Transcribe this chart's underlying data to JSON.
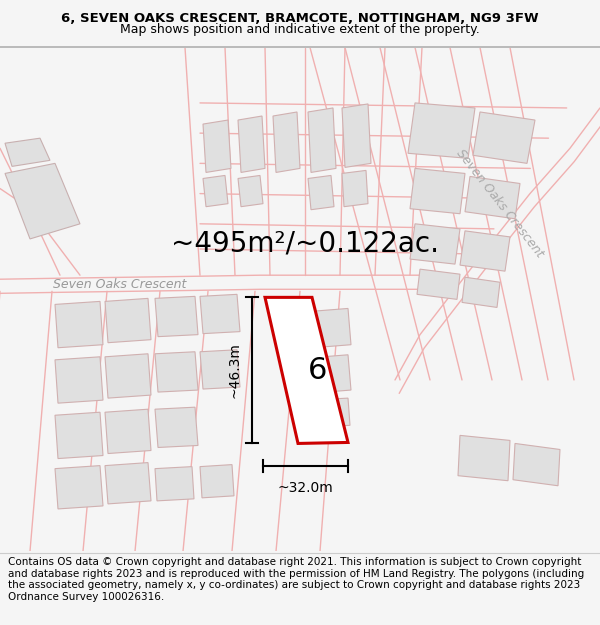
{
  "title_line1": "6, SEVEN OAKS CRESCENT, BRAMCOTE, NOTTINGHAM, NG9 3FW",
  "title_line2": "Map shows position and indicative extent of the property.",
  "area_text": "~495m²/~0.122ac.",
  "label_number": "6",
  "dim_vertical": "~46.3m",
  "dim_horizontal": "~32.0m",
  "road_label_bottom": "Seven Oaks Crescent",
  "road_label_top_right": "Seven Oaks Crescent",
  "footer_text": "Contains OS data © Crown copyright and database right 2021. This information is subject to Crown copyright and database rights 2023 and is reproduced with the permission of HM Land Registry. The polygons (including the associated geometry, namely x, y co-ordinates) are subject to Crown copyright and database rights 2023 Ordnance Survey 100026316.",
  "bg_color": "#f5f5f5",
  "map_bg_color": "#ffffff",
  "plot_outline_color": "#cc0000",
  "road_line_color": "#f0b0b0",
  "road_fill_color": "#fce8e8",
  "building_color": "#e0e0e0",
  "building_outline": "#d0b0b0",
  "title_fontsize": 9.5,
  "subtitle_fontsize": 9,
  "area_fontsize": 20,
  "number_fontsize": 22,
  "dim_fontsize": 10,
  "road_label_fontsize": 9,
  "footer_fontsize": 7.5
}
